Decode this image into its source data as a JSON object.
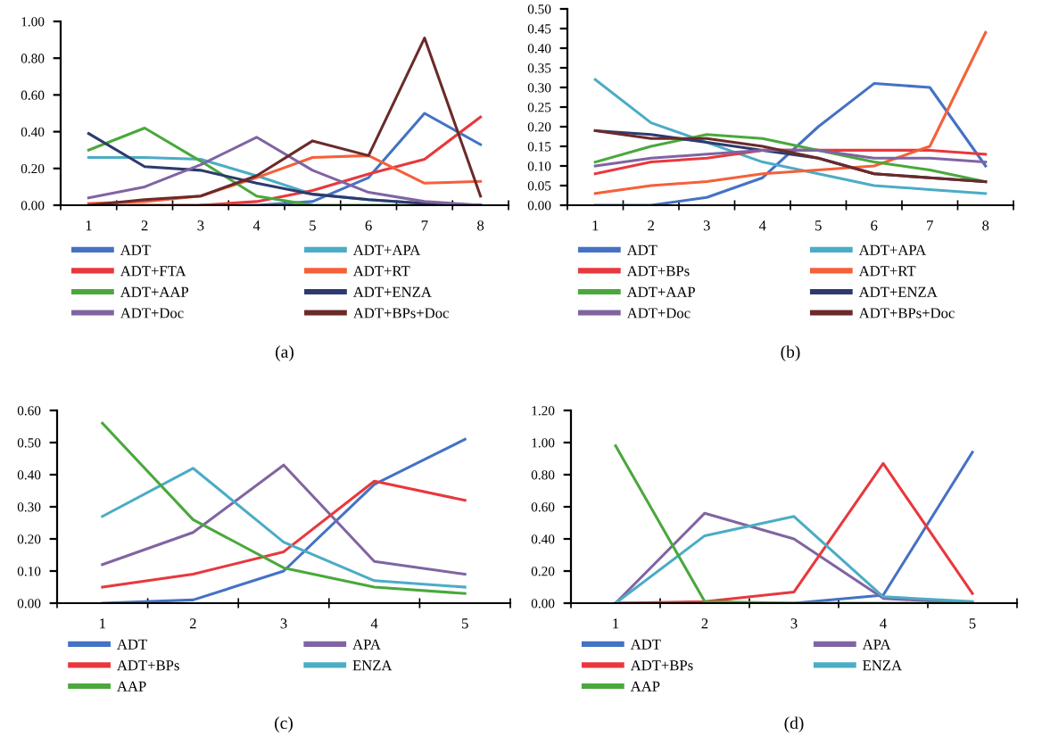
{
  "chart_data": [
    {
      "type": "line",
      "categories": [
        "1",
        "2",
        "3",
        "4",
        "5",
        "6",
        "7",
        "8"
      ],
      "ylim": [
        0,
        1.0
      ],
      "yticks": [
        {
          "value": 0,
          "label": "0.00"
        },
        {
          "value": 0.2,
          "label": "0.20"
        },
        {
          "value": 0.4,
          "label": "0.40"
        },
        {
          "value": 0.6,
          "label": "0.60"
        },
        {
          "value": 0.8,
          "label": "0.80"
        },
        {
          "value": 1.0,
          "label": "1.00"
        }
      ],
      "legend": "bottom",
      "grid": false,
      "annotations": [
        "(a)"
      ],
      "series": [
        {
          "name": "ADT",
          "color": "#4472c4",
          "values": [
            null,
            null,
            0,
            0,
            0.02,
            0.15,
            0.5,
            0.33
          ]
        },
        {
          "name": "ADT+APA",
          "color": "#4bacc6",
          "values": [
            0.26,
            0.26,
            0.25,
            0.16,
            0.06,
            0.03,
            0.01,
            0
          ]
        },
        {
          "name": "ADT+FTA",
          "color": "#e8383d",
          "values": [
            0,
            0,
            0,
            0.02,
            0.08,
            0.17,
            0.25,
            0.48
          ]
        },
        {
          "name": "ADT+RT",
          "color": "#f5603a",
          "values": [
            0.01,
            0.02,
            0.05,
            0.15,
            0.26,
            0.27,
            0.12,
            0.13
          ]
        },
        {
          "name": "ADT+AAP",
          "color": "#4aa83c",
          "values": [
            0.3,
            0.42,
            0.24,
            0.05,
            0,
            0,
            0,
            0
          ]
        },
        {
          "name": "ADT+ENZA",
          "color": "#2e3a6e",
          "values": [
            0.39,
            0.21,
            0.19,
            0.12,
            0.06,
            0.03,
            0.01,
            0
          ]
        },
        {
          "name": "ADT+Doc",
          "color": "#8064a2",
          "values": [
            0.04,
            0.1,
            0.22,
            0.37,
            0.19,
            0.07,
            0.02,
            0
          ]
        },
        {
          "name": "ADT+BPs+Doc",
          "color": "#6b2a2a",
          "values": [
            0,
            0.03,
            0.05,
            0.16,
            0.35,
            0.27,
            0.91,
            0.05
          ]
        }
      ]
    },
    {
      "type": "line",
      "categories": [
        "1",
        "2",
        "3",
        "4",
        "5",
        "6",
        "7",
        "8"
      ],
      "ylim": [
        0,
        0.5
      ],
      "yticks": [
        {
          "value": 0,
          "label": "0.00"
        },
        {
          "value": 0.05,
          "label": "0.05"
        },
        {
          "value": 0.1,
          "label": "0.10"
        },
        {
          "value": 0.15,
          "label": "0.15"
        },
        {
          "value": 0.2,
          "label": "0.20"
        },
        {
          "value": 0.25,
          "label": "0.25"
        },
        {
          "value": 0.3,
          "label": "0.30"
        },
        {
          "value": 0.35,
          "label": "0.35"
        },
        {
          "value": 0.4,
          "label": "0.40"
        },
        {
          "value": 0.45,
          "label": "0.45"
        },
        {
          "value": 0.5,
          "label": "0.50"
        }
      ],
      "legend": "bottom",
      "grid": false,
      "annotations": [
        "(b)"
      ],
      "series": [
        {
          "name": "ADT",
          "color": "#4472c4",
          "values": [
            0,
            0,
            0.02,
            0.07,
            0.2,
            0.31,
            0.3,
            0.1
          ]
        },
        {
          "name": "ADT+APA",
          "color": "#4bacc6",
          "values": [
            0.32,
            0.21,
            0.16,
            0.11,
            0.08,
            0.05,
            0.04,
            0.03
          ]
        },
        {
          "name": "ADT+BPs",
          "color": "#e8383d",
          "values": [
            0.08,
            0.11,
            0.12,
            0.14,
            0.14,
            0.14,
            0.14,
            0.13
          ]
        },
        {
          "name": "ADT+RT",
          "color": "#f5603a",
          "values": [
            0.03,
            0.05,
            0.06,
            0.08,
            0.09,
            0.1,
            0.15,
            0.44
          ]
        },
        {
          "name": "ADT+AAP",
          "color": "#4aa83c",
          "values": [
            0.11,
            0.15,
            0.18,
            0.17,
            0.14,
            0.11,
            0.09,
            0.06
          ]
        },
        {
          "name": "ADT+ENZA",
          "color": "#2e3a6e",
          "values": [
            0.19,
            0.18,
            0.16,
            0.14,
            0.12,
            0.08,
            0.07,
            0.06
          ]
        },
        {
          "name": "ADT+Doc",
          "color": "#8064a2",
          "values": [
            0.1,
            0.12,
            0.13,
            0.14,
            0.14,
            0.12,
            0.12,
            0.11
          ]
        },
        {
          "name": "ADT+BPs+Doc",
          "color": "#6b2a2a",
          "values": [
            0.19,
            0.17,
            0.17,
            0.15,
            0.12,
            0.08,
            0.07,
            0.06
          ]
        }
      ]
    },
    {
      "type": "line",
      "categories": [
        "1",
        "2",
        "3",
        "4",
        "5"
      ],
      "ylim": [
        0,
        0.6
      ],
      "yticks": [
        {
          "value": 0,
          "label": "0.00"
        },
        {
          "value": 0.1,
          "label": "0.10"
        },
        {
          "value": 0.2,
          "label": "0.20"
        },
        {
          "value": 0.3,
          "label": "0.30"
        },
        {
          "value": 0.4,
          "label": "0.40"
        },
        {
          "value": 0.5,
          "label": "0.50"
        },
        {
          "value": 0.6,
          "label": "0.60"
        }
      ],
      "legend": "bottom",
      "grid": false,
      "annotations": [
        "(c)"
      ],
      "series": [
        {
          "name": "ADT",
          "color": "#4472c4",
          "values": [
            0,
            0.01,
            0.1,
            0.37,
            0.51
          ]
        },
        {
          "name": "APA",
          "color": "#8064a2",
          "values": [
            0.12,
            0.22,
            0.43,
            0.13,
            0.09
          ]
        },
        {
          "name": "ADT+BPs",
          "color": "#e8383d",
          "values": [
            0.05,
            0.09,
            0.16,
            0.38,
            0.32
          ]
        },
        {
          "name": "ENZA",
          "color": "#4bacc6",
          "values": [
            0.27,
            0.42,
            0.19,
            0.07,
            0.05
          ]
        },
        {
          "name": "AAP",
          "color": "#4aa83c",
          "values": [
            0.56,
            0.26,
            0.11,
            0.05,
            0.03
          ]
        }
      ]
    },
    {
      "type": "line",
      "categories": [
        "1",
        "2",
        "3",
        "4",
        "5"
      ],
      "ylim": [
        0,
        1.2
      ],
      "yticks": [
        {
          "value": 0,
          "label": "0.00"
        },
        {
          "value": 0.2,
          "label": "0.20"
        },
        {
          "value": 0.4,
          "label": "0.40"
        },
        {
          "value": 0.6,
          "label": "0.60"
        },
        {
          "value": 0.8,
          "label": "0.80"
        },
        {
          "value": 1.0,
          "label": "1.00"
        },
        {
          "value": 1.2,
          "label": "1.20"
        }
      ],
      "legend": "bottom",
      "grid": false,
      "annotations": [
        "(d)"
      ],
      "series": [
        {
          "name": "ADT",
          "color": "#4472c4",
          "values": [
            0,
            0,
            0,
            0.05,
            0.94
          ]
        },
        {
          "name": "APA",
          "color": "#8064a2",
          "values": [
            0,
            0.56,
            0.4,
            0.03,
            0
          ]
        },
        {
          "name": "ADT+BPs",
          "color": "#e8383d",
          "values": [
            0,
            0.01,
            0.07,
            0.87,
            0.06
          ]
        },
        {
          "name": "ENZA",
          "color": "#4bacc6",
          "values": [
            0,
            0.42,
            0.54,
            0.04,
            0.01
          ]
        },
        {
          "name": "AAP",
          "color": "#4aa83c",
          "values": [
            0.98,
            0.01,
            0,
            0,
            0
          ]
        }
      ]
    }
  ]
}
